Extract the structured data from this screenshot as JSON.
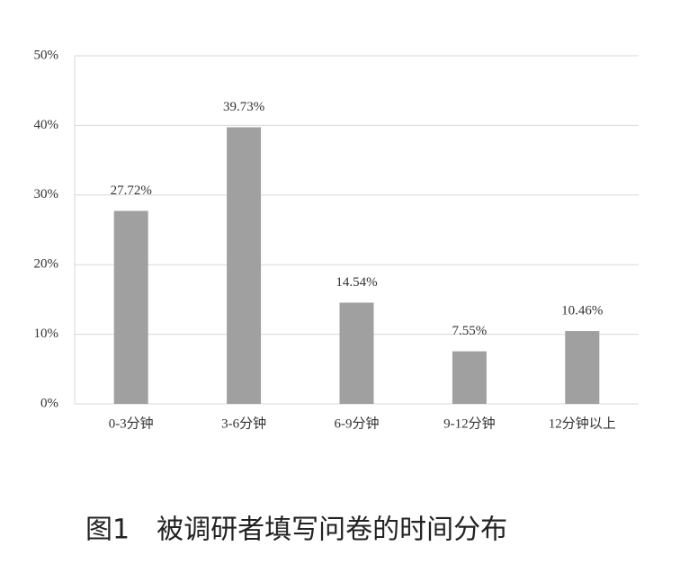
{
  "chart_data": {
    "type": "bar",
    "title": "图1　被调研者填写问卷的时间分布",
    "categories": [
      "0-3分钟",
      "3-6分钟",
      "6-9分钟",
      "9-12分钟",
      "12分钟以上"
    ],
    "values": [
      27.72,
      39.73,
      14.54,
      7.55,
      10.46
    ],
    "value_labels": [
      "27.72%",
      "39.73%",
      "14.54%",
      "7.55%",
      "10.46%"
    ],
    "color": "#a0a0a0",
    "ylim": [
      0,
      50
    ],
    "yticks": [
      {
        "value": 0,
        "label": "0%"
      },
      {
        "value": 10,
        "label": "10%"
      },
      {
        "value": 20,
        "label": "20%"
      },
      {
        "value": 30,
        "label": "30%"
      },
      {
        "value": 40,
        "label": "40%"
      },
      {
        "value": 50,
        "label": "50%"
      }
    ],
    "grid": true
  }
}
